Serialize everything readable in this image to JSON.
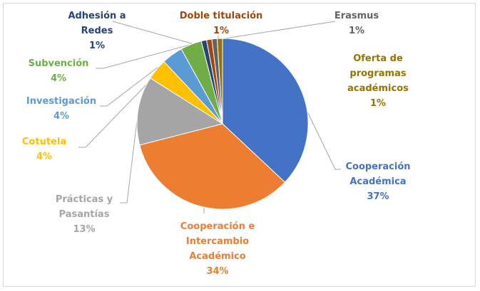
{
  "chart_data": {
    "type": "pie",
    "categories": [
      "Cooperación Académica",
      "Cooperación e Intercambio Académico",
      "Prácticas y Pasantías",
      "Cotutela",
      "Investigación",
      "Subvención",
      "Adhesión a Redes",
      "Doble titulación",
      "Erasmus",
      "Oferta de programas académicos"
    ],
    "values": [
      37,
      34,
      13,
      4,
      4,
      4,
      1,
      1,
      1,
      1
    ],
    "value_labels": [
      "37%",
      "34%",
      "13%",
      "4%",
      "4%",
      "4%",
      "1%",
      "1%",
      "1%",
      "1%"
    ],
    "colors": [
      "#4472c4",
      "#ed7d31",
      "#a5a5a5",
      "#ffc000",
      "#5b9bd5",
      "#70ad47",
      "#264478",
      "#9e480e",
      "#636363",
      "#997300"
    ]
  }
}
